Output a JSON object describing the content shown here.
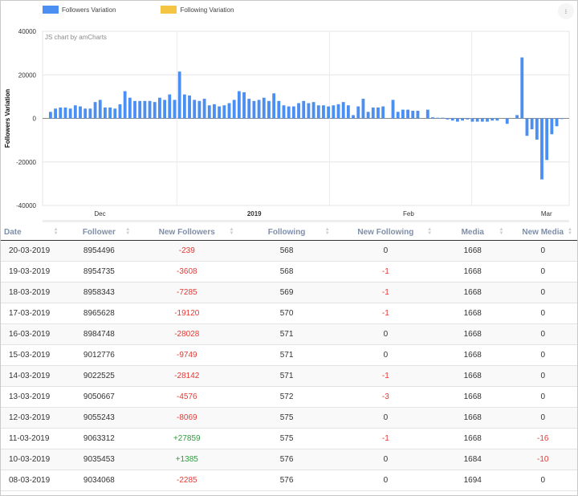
{
  "legend": [
    {
      "label": "Followers Variation",
      "color": "#4c8ff2"
    },
    {
      "label": "Following Variation",
      "color": "#f4c542"
    }
  ],
  "export_icon": "download-icon",
  "credit": "JS chart by amCharts",
  "chart_data": {
    "type": "bar",
    "ylabel": "Followers Variation",
    "ylim": [
      -40000,
      40000
    ],
    "yticks": [
      40000,
      20000,
      0,
      -20000,
      -40000
    ],
    "xtick_labels": [
      {
        "label": "Dec",
        "bold": false
      },
      {
        "label": "2019",
        "bold": true
      },
      {
        "label": "Feb",
        "bold": false
      },
      {
        "label": "Mar",
        "bold": false
      }
    ],
    "grid": true,
    "series": [
      {
        "name": "Followers Variation",
        "values": [
          3000,
          4500,
          5000,
          5000,
          4500,
          6000,
          5500,
          4500,
          4500,
          7500,
          8500,
          5000,
          5000,
          4500,
          6500,
          12500,
          9500,
          8000,
          8000,
          8000,
          8000,
          7500,
          9500,
          8500,
          11000,
          8500,
          21500,
          11000,
          10500,
          8500,
          8000,
          9000,
          6000,
          6500,
          5500,
          6000,
          7000,
          8500,
          12500,
          12000,
          9000,
          8000,
          8500,
          9500,
          8000,
          11500,
          8000,
          6000,
          5500,
          5500,
          7000,
          8000,
          7000,
          7500,
          6000,
          6000,
          5500,
          6000,
          6500,
          7500,
          6000,
          1500,
          5500,
          9000,
          3000,
          5000,
          5000,
          5500,
          0,
          8500,
          3000,
          4000,
          4000,
          3500,
          3500,
          0,
          4000,
          500,
          300,
          300,
          -500,
          -1000,
          -1500,
          -1000,
          -500,
          -1500,
          -1500,
          -1500,
          -1500,
          -1000,
          -1000,
          0,
          -2500,
          0,
          1500,
          28000,
          -8000,
          -5000,
          -9749,
          -28028,
          -19120,
          -7285,
          -3608,
          -239
        ]
      }
    ]
  },
  "table": {
    "columns": [
      "Date",
      "Follower",
      "New Followers",
      "Following",
      "New Following",
      "Media",
      "New Media"
    ],
    "rows": [
      [
        "20-03-2019",
        "8954496",
        "-239",
        "568",
        "0",
        "1668",
        "0"
      ],
      [
        "19-03-2019",
        "8954735",
        "-3608",
        "568",
        "-1",
        "1668",
        "0"
      ],
      [
        "18-03-2019",
        "8958343",
        "-7285",
        "569",
        "-1",
        "1668",
        "0"
      ],
      [
        "17-03-2019",
        "8965628",
        "-19120",
        "570",
        "-1",
        "1668",
        "0"
      ],
      [
        "16-03-2019",
        "8984748",
        "-28028",
        "571",
        "0",
        "1668",
        "0"
      ],
      [
        "15-03-2019",
        "9012776",
        "-9749",
        "571",
        "0",
        "1668",
        "0"
      ],
      [
        "14-03-2019",
        "9022525",
        "-28142",
        "571",
        "-1",
        "1668",
        "0"
      ],
      [
        "13-03-2019",
        "9050667",
        "-4576",
        "572",
        "-3",
        "1668",
        "0"
      ],
      [
        "12-03-2019",
        "9055243",
        "-8069",
        "575",
        "0",
        "1668",
        "0"
      ],
      [
        "11-03-2019",
        "9063312",
        "+27859",
        "575",
        "-1",
        "1668",
        "-16"
      ],
      [
        "10-03-2019",
        "9035453",
        "+1385",
        "576",
        "0",
        "1684",
        "-10"
      ],
      [
        "08-03-2019",
        "9034068",
        "-2285",
        "576",
        "0",
        "1694",
        "0"
      ]
    ]
  }
}
